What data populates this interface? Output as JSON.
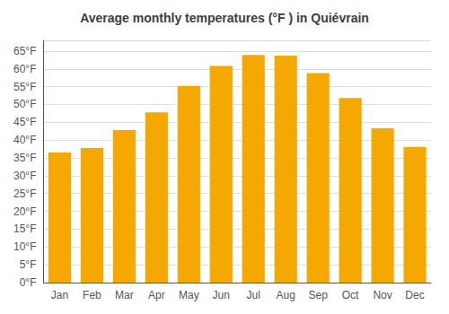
{
  "chart_data": {
    "type": "bar",
    "title": "Average monthly temperatures (°F ) in Quiévrain",
    "categories": [
      "Jan",
      "Feb",
      "Mar",
      "Apr",
      "May",
      "Jun",
      "Jul",
      "Aug",
      "Sep",
      "Oct",
      "Nov",
      "Dec"
    ],
    "values": [
      36.5,
      37.8,
      42.8,
      47.8,
      55.2,
      60.8,
      63.9,
      63.7,
      58.8,
      51.8,
      43.3,
      38.1
    ],
    "color": "#F5A800",
    "ylim": [
      0,
      68
    ],
    "yticks": [
      {
        "value": 0,
        "label": "0°F"
      },
      {
        "value": 5,
        "label": "5°F"
      },
      {
        "value": 10,
        "label": "10°F"
      },
      {
        "value": 15,
        "label": "15°F"
      },
      {
        "value": 20,
        "label": "20°F"
      },
      {
        "value": 25,
        "label": "25°F"
      },
      {
        "value": 30,
        "label": "30°F"
      },
      {
        "value": 35,
        "label": "35°F"
      },
      {
        "value": 40,
        "label": "40°F"
      },
      {
        "value": 45,
        "label": "45°F"
      },
      {
        "value": 50,
        "label": "50°F"
      },
      {
        "value": 55,
        "label": "55°F"
      },
      {
        "value": 60,
        "label": "60°F"
      },
      {
        "value": 65,
        "label": "65°F"
      }
    ],
    "grid": true
  }
}
